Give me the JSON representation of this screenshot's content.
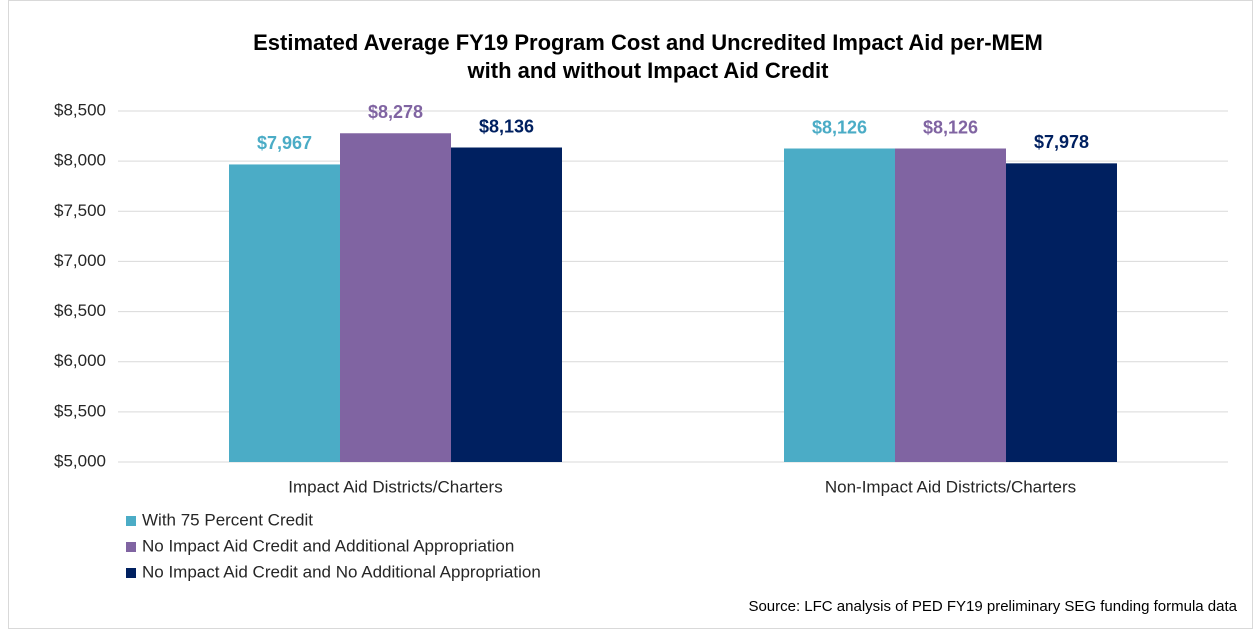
{
  "chart_data": {
    "type": "bar",
    "title": [
      "Estimated Average FY19 Program Cost and Uncredited Impact Aid per-MEM",
      "with and without Impact Aid Credit"
    ],
    "categories": [
      "Impact Aid Districts/Charters",
      "Non-Impact Aid Districts/Charters"
    ],
    "series": [
      {
        "name": "With 75 Percent Credit",
        "color": "#4bacc6",
        "values": [
          7967,
          8126
        ],
        "value_labels": [
          "$7,967",
          "$8,126"
        ]
      },
      {
        "name": "No Impact Aid Credit and Additional Appropriation",
        "color": "#8064a2",
        "values": [
          8278,
          8126
        ],
        "value_labels": [
          "$8,278",
          "$8,126"
        ]
      },
      {
        "name": "No Impact Aid Credit and No Additional Appropriation",
        "color": "#002060",
        "values": [
          8136,
          7978
        ],
        "value_labels": [
          "$8,136",
          "$7,978"
        ]
      }
    ],
    "ylim": [
      5000,
      8500
    ],
    "yticks": [
      {
        "value": 5000,
        "label": "$5,000"
      },
      {
        "value": 5500,
        "label": "$5,500"
      },
      {
        "value": 6000,
        "label": "$6,000"
      },
      {
        "value": 6500,
        "label": "$6,500"
      },
      {
        "value": 7000,
        "label": "$7,000"
      },
      {
        "value": 7500,
        "label": "$7,500"
      },
      {
        "value": 8000,
        "label": "$8,000"
      },
      {
        "value": 8500,
        "label": "$8,500"
      }
    ],
    "grid": true,
    "legend": "bottom-left",
    "source": "Source: LFC analysis of PED FY19 preliminary SEG funding formula data"
  }
}
